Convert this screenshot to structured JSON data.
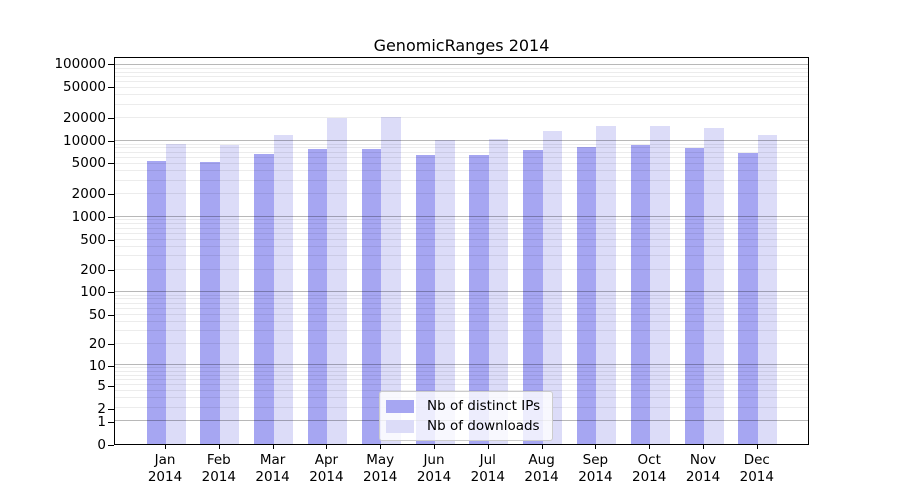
{
  "title": "GenomicRanges 2014",
  "colors": {
    "distinct_ips_bar": "#a6a6f2",
    "downloads_bar": "#dcdcf8",
    "axis": "#000000"
  },
  "legend": {
    "items": [
      {
        "label": "Nb of distinct IPs"
      },
      {
        "label": "Nb of downloads"
      }
    ]
  },
  "y_axis": {
    "tick_labels": [
      "100000",
      "50000",
      "20000",
      "10000",
      "5000",
      "2000",
      "1000",
      "500",
      "200",
      "100",
      "50",
      "20",
      "10",
      "5",
      "2",
      "1",
      "0"
    ]
  },
  "chart_data": {
    "type": "bar",
    "title": "GenomicRanges 2014",
    "categories": [
      "Jan 2014",
      "Feb 2014",
      "Mar 2014",
      "Apr 2014",
      "May 2014",
      "Jun 2014",
      "Jul 2014",
      "Aug 2014",
      "Sep 2014",
      "Oct 2014",
      "Nov 2014",
      "Dec 2014"
    ],
    "series": [
      {
        "name": "Nb of distinct IPs",
        "color": "#a6a6f2",
        "values": [
          5200,
          5100,
          6550,
          7450,
          7450,
          6350,
          6200,
          7250,
          7950,
          8600,
          7800,
          6700
        ]
      },
      {
        "name": "Nb of downloads",
        "color": "#dcdcf8",
        "values": [
          8800,
          8450,
          11500,
          19000,
          20000,
          10000,
          10300,
          12800,
          15000,
          14900,
          14300,
          11600
        ]
      }
    ],
    "xlabel": "",
    "ylabel": "",
    "scale": "log10(value+1)",
    "ylim": [
      0,
      125000
    ],
    "yticks": [
      0,
      1,
      2,
      5,
      10,
      20,
      50,
      100,
      200,
      500,
      1000,
      2000,
      5000,
      10000,
      20000,
      50000,
      100000
    ],
    "grid": "horizontal; light minor lines at 2-9 per decade, darker lines at powers of 10, drawn over bars",
    "legend_position": "bottom-center-inside"
  }
}
